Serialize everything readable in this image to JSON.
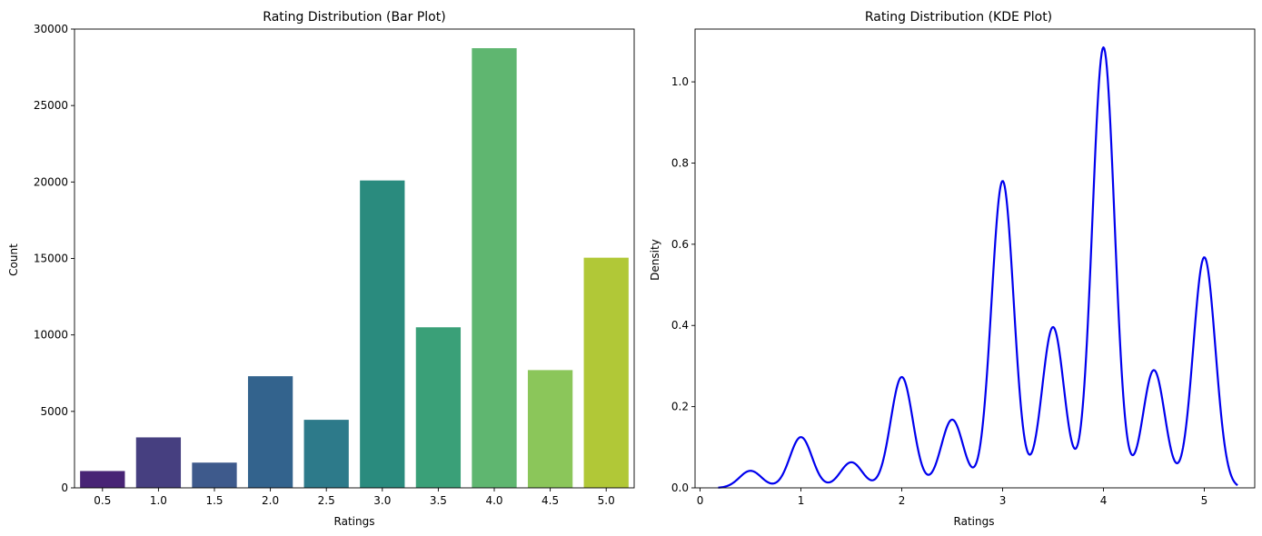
{
  "chart_data": [
    {
      "type": "bar",
      "title": "Rating Distribution (Bar Plot)",
      "xlabel": "Ratings",
      "ylabel": "Count",
      "categories": [
        "0.5",
        "1.0",
        "1.5",
        "2.0",
        "2.5",
        "3.0",
        "3.5",
        "4.0",
        "4.5",
        "5.0"
      ],
      "values": [
        1100,
        3300,
        1650,
        7300,
        4450,
        20100,
        10500,
        28750,
        7700,
        15050
      ],
      "colors": [
        "#482475",
        "#463f80",
        "#3e5a8c",
        "#33638d",
        "#2d7a8a",
        "#2a8b7e",
        "#3aa078",
        "#5fb670",
        "#8bc65a",
        "#b1c837"
      ],
      "ylim": [
        0,
        30000
      ],
      "yticks": [
        0,
        5000,
        10000,
        15000,
        20000,
        25000,
        30000
      ],
      "grid": false
    },
    {
      "type": "line",
      "title": "Rating Distribution (KDE Plot)",
      "xlabel": "Ratings",
      "ylabel": "Density",
      "xlim": [
        -0.05,
        5.5
      ],
      "ylim": [
        0,
        1.13
      ],
      "xticks": [
        0,
        1,
        2,
        3,
        4,
        5
      ],
      "yticks": [
        0.0,
        0.2,
        0.4,
        0.6,
        0.8,
        1.0
      ],
      "ytick_labels": [
        "0.0",
        "0.2",
        "0.4",
        "0.6",
        "0.8",
        "1.0"
      ],
      "x_range": [
        0.18,
        5.33
      ],
      "series": [
        {
          "color": "#0000ee",
          "peaks": [
            {
              "x": 0.5,
              "y": 0.042
            },
            {
              "x": 1.0,
              "y": 0.125
            },
            {
              "x": 1.5,
              "y": 0.063
            },
            {
              "x": 2.0,
              "y": 0.273
            },
            {
              "x": 2.5,
              "y": 0.168
            },
            {
              "x": 3.0,
              "y": 0.756
            },
            {
              "x": 3.5,
              "y": 0.396
            },
            {
              "x": 4.0,
              "y": 1.085
            },
            {
              "x": 4.5,
              "y": 0.29
            },
            {
              "x": 5.0,
              "y": 0.568
            }
          ],
          "bandwidth": 0.11
        }
      ],
      "grid": false
    }
  ]
}
